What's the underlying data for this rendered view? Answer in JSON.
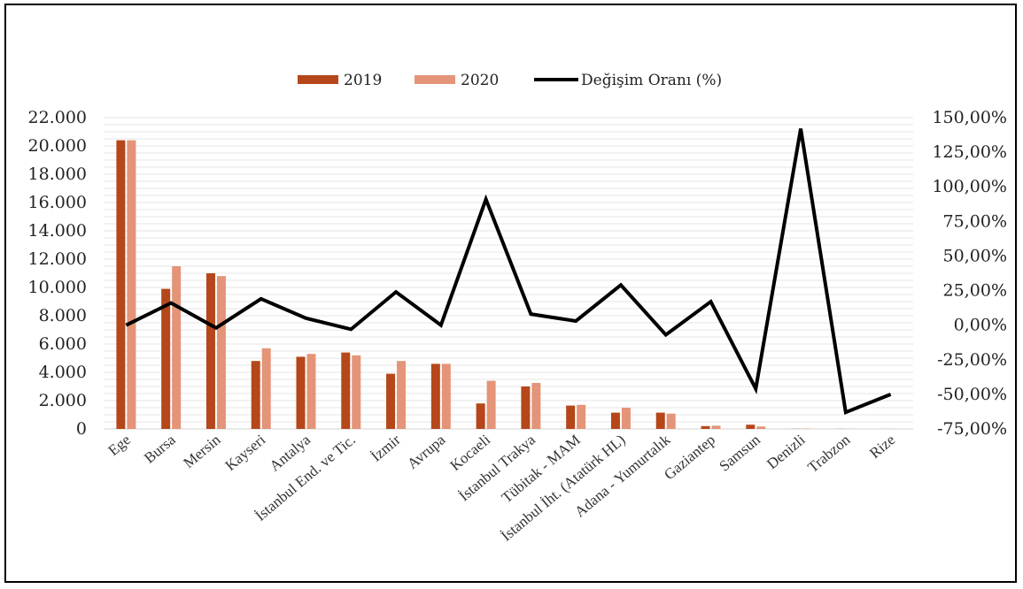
{
  "chart_data": {
    "type": "bar",
    "title": "",
    "categories": [
      "Ege",
      "Bursa",
      "Mersin",
      "Kayseri",
      "Antalya",
      "İstanbul End. ve Tic.",
      "İzmir",
      "Avrupa",
      "Kocaeli",
      "İstanbul Trakya",
      "Tübitak - MAM",
      "İstanbul İht. (Atatürk HL)",
      "Adana - Yumurtalık",
      "Gaziantep",
      "Samsun",
      "Denizli",
      "Trabzon",
      "Rize"
    ],
    "series": [
      {
        "name": "2019",
        "kind": "bar",
        "axis": "left",
        "color": "#B5471A",
        "values": [
          20400,
          9900,
          11000,
          4800,
          5100,
          5400,
          3900,
          4600,
          1800,
          3000,
          1650,
          1150,
          1150,
          200,
          300,
          10,
          8,
          2
        ]
      },
      {
        "name": "2020",
        "kind": "bar",
        "axis": "left",
        "color": "#E49478",
        "values": [
          20400,
          11500,
          10800,
          5700,
          5300,
          5200,
          4800,
          4600,
          3400,
          3250,
          1700,
          1500,
          1080,
          230,
          170,
          25,
          3,
          1
        ]
      },
      {
        "name": "Değişim Oranı (%)",
        "kind": "line",
        "axis": "right",
        "color": "#000000",
        "values": [
          0,
          16,
          -2,
          19,
          5,
          -3,
          24,
          0,
          91,
          8,
          3,
          29,
          -7,
          17,
          -46,
          142,
          -63,
          -50
        ]
      }
    ],
    "y_left": {
      "min": 0,
      "max": 22000,
      "step": 2000,
      "tick_labels": [
        "0",
        "2.000",
        "4.000",
        "6.000",
        "8.000",
        "10.000",
        "12.000",
        "14.000",
        "16.000",
        "18.000",
        "20.000",
        "22.000"
      ]
    },
    "y_right": {
      "min": -75,
      "max": 150,
      "step": 25,
      "tick_labels": [
        "-75,00%",
        "-50,00%",
        "-25,00%",
        "0,00%",
        "25,00%",
        "50,00%",
        "75,00%",
        "100,00%",
        "125,00%",
        "150,00%"
      ]
    },
    "grid": true,
    "legend_position": "top"
  }
}
